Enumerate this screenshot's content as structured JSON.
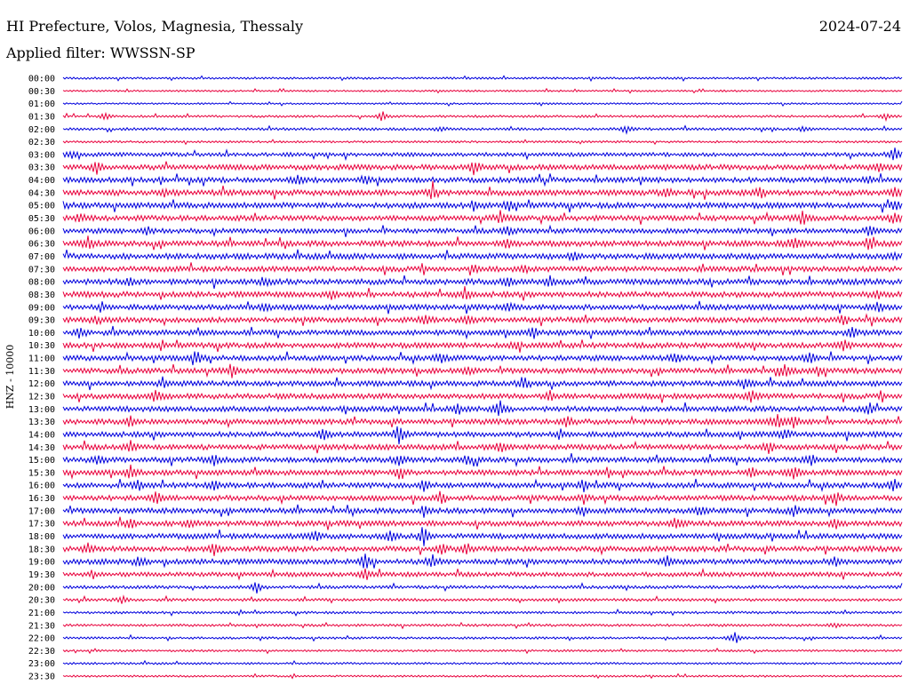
{
  "header": {
    "station": "HI Prefecture, Volos, Magnesia, Thessaly",
    "date": "2024-07-24",
    "filter_prefix": "Applied filter: ",
    "filter_name": "WWSSN-SP"
  },
  "colors": {
    "trace_blue": "#0000dd",
    "trace_red": "#e8003c",
    "background": "#ffffff",
    "text": "#000000"
  },
  "chart_data": {
    "type": "line",
    "subtype": "helicorder",
    "channel_label": "HNZ - 10000",
    "row_labels": [
      "00:00",
      "00:30",
      "01:00",
      "01:30",
      "02:00",
      "02:30",
      "03:00",
      "03:30",
      "04:00",
      "04:30",
      "05:00",
      "05:30",
      "06:00",
      "06:30",
      "07:00",
      "07:30",
      "08:00",
      "08:30",
      "09:00",
      "09:30",
      "10:00",
      "10:30",
      "11:00",
      "11:30",
      "12:00",
      "12:30",
      "13:00",
      "13:30",
      "14:00",
      "14:30",
      "15:00",
      "15:30",
      "16:00",
      "16:30",
      "17:00",
      "17:30",
      "18:00",
      "18:30",
      "19:00",
      "19:30",
      "20:00",
      "20:30",
      "21:00",
      "21:30",
      "22:00",
      "22:30",
      "23:00",
      "23:30"
    ],
    "row_colors_alternate": [
      "trace_blue",
      "trace_red"
    ],
    "row_noise_level": [
      1.2,
      1.0,
      1.0,
      1.3,
      1.5,
      1.2,
      2.2,
      3.0,
      3.0,
      3.2,
      3.2,
      3.0,
      2.8,
      3.2,
      3.2,
      3.0,
      3.2,
      3.2,
      3.0,
      3.0,
      3.0,
      3.0,
      3.0,
      3.0,
      3.0,
      3.0,
      3.0,
      3.0,
      3.0,
      3.0,
      3.0,
      3.0,
      3.0,
      3.0,
      3.0,
      3.0,
      3.0,
      3.0,
      3.0,
      2.5,
      1.8,
      1.6,
      1.4,
      1.4,
      1.3,
      1.2,
      1.2,
      1.1
    ],
    "events": [
      {
        "row": 3,
        "t": 0.38,
        "a": 6
      },
      {
        "row": 3,
        "t": 0.05,
        "a": 4
      },
      {
        "row": 3,
        "t": 0.98,
        "a": 4
      },
      {
        "row": 4,
        "t": 0.67,
        "a": 5
      },
      {
        "row": 4,
        "t": 0.45,
        "a": 3
      },
      {
        "row": 4,
        "t": 0.88,
        "a": 3
      },
      {
        "row": 6,
        "t": 0.01,
        "a": 4
      },
      {
        "row": 6,
        "t": 0.99,
        "a": 8
      },
      {
        "row": 7,
        "t": 0.04,
        "a": 8
      },
      {
        "row": 7,
        "t": 0.49,
        "a": 9
      },
      {
        "row": 7,
        "t": 0.97,
        "a": 5
      },
      {
        "row": 8,
        "t": 0.28,
        "a": 5
      },
      {
        "row": 8,
        "t": 0.36,
        "a": 5
      },
      {
        "row": 8,
        "t": 0.96,
        "a": 4
      },
      {
        "row": 9,
        "t": 0.12,
        "a": 4
      },
      {
        "row": 9,
        "t": 0.44,
        "a": 8
      },
      {
        "row": 9,
        "t": 0.72,
        "a": 6
      },
      {
        "row": 9,
        "t": 0.83,
        "a": 6
      },
      {
        "row": 9,
        "t": 0.99,
        "a": 5
      },
      {
        "row": 10,
        "t": 0.0,
        "a": 5
      },
      {
        "row": 10,
        "t": 0.49,
        "a": 6
      },
      {
        "row": 10,
        "t": 0.53,
        "a": 5
      },
      {
        "row": 10,
        "t": 0.99,
        "a": 5
      },
      {
        "row": 11,
        "t": 0.02,
        "a": 5
      },
      {
        "row": 11,
        "t": 0.52,
        "a": 6
      },
      {
        "row": 11,
        "t": 0.88,
        "a": 9
      },
      {
        "row": 11,
        "t": 0.99,
        "a": 8
      },
      {
        "row": 12,
        "t": 0.1,
        "a": 4
      },
      {
        "row": 12,
        "t": 0.53,
        "a": 5
      },
      {
        "row": 12,
        "t": 0.96,
        "a": 7
      },
      {
        "row": 13,
        "t": 0.03,
        "a": 7
      },
      {
        "row": 13,
        "t": 0.53,
        "a": 6
      },
      {
        "row": 13,
        "t": 0.87,
        "a": 8
      },
      {
        "row": 13,
        "t": 0.96,
        "a": 7
      },
      {
        "row": 14,
        "t": 0.61,
        "a": 6
      },
      {
        "row": 14,
        "t": 0.99,
        "a": 4
      },
      {
        "row": 15,
        "t": 0.49,
        "a": 5
      },
      {
        "row": 15,
        "t": 0.55,
        "a": 4
      },
      {
        "row": 16,
        "t": 0.08,
        "a": 4
      },
      {
        "row": 16,
        "t": 0.24,
        "a": 5
      },
      {
        "row": 16,
        "t": 0.53,
        "a": 6
      },
      {
        "row": 16,
        "t": 0.58,
        "a": 5
      },
      {
        "row": 17,
        "t": 0.32,
        "a": 6
      },
      {
        "row": 17,
        "t": 0.48,
        "a": 6
      },
      {
        "row": 17,
        "t": 0.97,
        "a": 5
      },
      {
        "row": 18,
        "t": 0.24,
        "a": 4
      },
      {
        "row": 18,
        "t": 0.53,
        "a": 5
      },
      {
        "row": 18,
        "t": 0.97,
        "a": 7
      },
      {
        "row": 19,
        "t": 0.04,
        "a": 5
      },
      {
        "row": 19,
        "t": 0.43,
        "a": 6
      },
      {
        "row": 19,
        "t": 0.48,
        "a": 5
      },
      {
        "row": 19,
        "t": 0.93,
        "a": 6
      },
      {
        "row": 20,
        "t": 0.02,
        "a": 7
      },
      {
        "row": 20,
        "t": 0.56,
        "a": 6
      },
      {
        "row": 20,
        "t": 0.94,
        "a": 7
      },
      {
        "row": 21,
        "t": 0.54,
        "a": 5
      },
      {
        "row": 21,
        "t": 0.93,
        "a": 7
      },
      {
        "row": 22,
        "t": 0.16,
        "a": 6
      },
      {
        "row": 22,
        "t": 0.45,
        "a": 6
      },
      {
        "row": 22,
        "t": 0.73,
        "a": 6
      },
      {
        "row": 22,
        "t": 0.89,
        "a": 6
      },
      {
        "row": 23,
        "t": 0.2,
        "a": 8
      },
      {
        "row": 23,
        "t": 0.48,
        "a": 5
      },
      {
        "row": 23,
        "t": 0.86,
        "a": 6
      },
      {
        "row": 23,
        "t": 0.9,
        "a": 5
      },
      {
        "row": 24,
        "t": 0.12,
        "a": 5
      },
      {
        "row": 24,
        "t": 0.55,
        "a": 6
      },
      {
        "row": 24,
        "t": 0.81,
        "a": 5
      },
      {
        "row": 25,
        "t": 0.11,
        "a": 9
      },
      {
        "row": 25,
        "t": 0.58,
        "a": 6
      },
      {
        "row": 25,
        "t": 0.82,
        "a": 7
      },
      {
        "row": 26,
        "t": 0.47,
        "a": 6
      },
      {
        "row": 26,
        "t": 0.52,
        "a": 9
      },
      {
        "row": 26,
        "t": 0.96,
        "a": 6
      },
      {
        "row": 27,
        "t": 0.08,
        "a": 6
      },
      {
        "row": 27,
        "t": 0.6,
        "a": 6
      },
      {
        "row": 27,
        "t": 0.85,
        "a": 9
      },
      {
        "row": 27,
        "t": 0.87,
        "a": 7
      },
      {
        "row": 28,
        "t": 0.31,
        "a": 6
      },
      {
        "row": 28,
        "t": 0.4,
        "a": 12
      },
      {
        "row": 28,
        "t": 0.86,
        "a": 6
      },
      {
        "row": 29,
        "t": 0.08,
        "a": 6
      },
      {
        "row": 29,
        "t": 0.52,
        "a": 6
      },
      {
        "row": 29,
        "t": 0.84,
        "a": 7
      },
      {
        "row": 30,
        "t": 0.04,
        "a": 5
      },
      {
        "row": 30,
        "t": 0.18,
        "a": 7
      },
      {
        "row": 30,
        "t": 0.4,
        "a": 7
      },
      {
        "row": 30,
        "t": 0.48,
        "a": 7
      },
      {
        "row": 30,
        "t": 0.89,
        "a": 6
      },
      {
        "row": 31,
        "t": 0.08,
        "a": 8
      },
      {
        "row": 31,
        "t": 0.4,
        "a": 6
      },
      {
        "row": 31,
        "t": 0.82,
        "a": 6
      },
      {
        "row": 31,
        "t": 0.87,
        "a": 8
      },
      {
        "row": 32,
        "t": 0.09,
        "a": 6
      },
      {
        "row": 32,
        "t": 0.18,
        "a": 6
      },
      {
        "row": 32,
        "t": 0.43,
        "a": 7
      },
      {
        "row": 32,
        "t": 0.62,
        "a": 6
      },
      {
        "row": 32,
        "t": 0.99,
        "a": 7
      },
      {
        "row": 33,
        "t": 0.11,
        "a": 8
      },
      {
        "row": 33,
        "t": 0.45,
        "a": 8
      },
      {
        "row": 33,
        "t": 0.62,
        "a": 6
      },
      {
        "row": 33,
        "t": 0.92,
        "a": 8
      },
      {
        "row": 34,
        "t": 0.43,
        "a": 6
      },
      {
        "row": 34,
        "t": 0.62,
        "a": 7
      },
      {
        "row": 34,
        "t": 0.76,
        "a": 6
      },
      {
        "row": 34,
        "t": 0.87,
        "a": 7
      },
      {
        "row": 35,
        "t": 0.08,
        "a": 7
      },
      {
        "row": 35,
        "t": 0.15,
        "a": 6
      },
      {
        "row": 35,
        "t": 0.73,
        "a": 6
      },
      {
        "row": 35,
        "t": 0.92,
        "a": 6
      },
      {
        "row": 36,
        "t": 0.3,
        "a": 6
      },
      {
        "row": 36,
        "t": 0.39,
        "a": 6
      },
      {
        "row": 36,
        "t": 0.43,
        "a": 10
      },
      {
        "row": 37,
        "t": 0.03,
        "a": 8
      },
      {
        "row": 37,
        "t": 0.18,
        "a": 8
      },
      {
        "row": 37,
        "t": 0.45,
        "a": 8
      },
      {
        "row": 37,
        "t": 0.48,
        "a": 7
      },
      {
        "row": 38,
        "t": 0.09,
        "a": 6
      },
      {
        "row": 38,
        "t": 0.36,
        "a": 10
      },
      {
        "row": 38,
        "t": 0.44,
        "a": 8
      },
      {
        "row": 38,
        "t": 0.72,
        "a": 7
      },
      {
        "row": 38,
        "t": 0.92,
        "a": 6
      },
      {
        "row": 39,
        "t": 0.36,
        "a": 8
      },
      {
        "row": 40,
        "t": 0.23,
        "a": 7
      },
      {
        "row": 41,
        "t": 0.07,
        "a": 6
      },
      {
        "row": 43,
        "t": 0.92,
        "a": 3
      },
      {
        "row": 44,
        "t": 0.8,
        "a": 8
      }
    ]
  }
}
